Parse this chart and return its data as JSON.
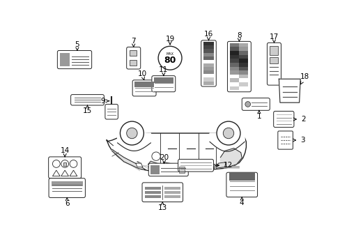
{
  "bg_color": "#ffffff",
  "fig_width": 4.89,
  "fig_height": 3.6,
  "dpi": 100,
  "van_color": "#ffffff",
  "van_edge": "#222222",
  "label_edge": "#222222"
}
